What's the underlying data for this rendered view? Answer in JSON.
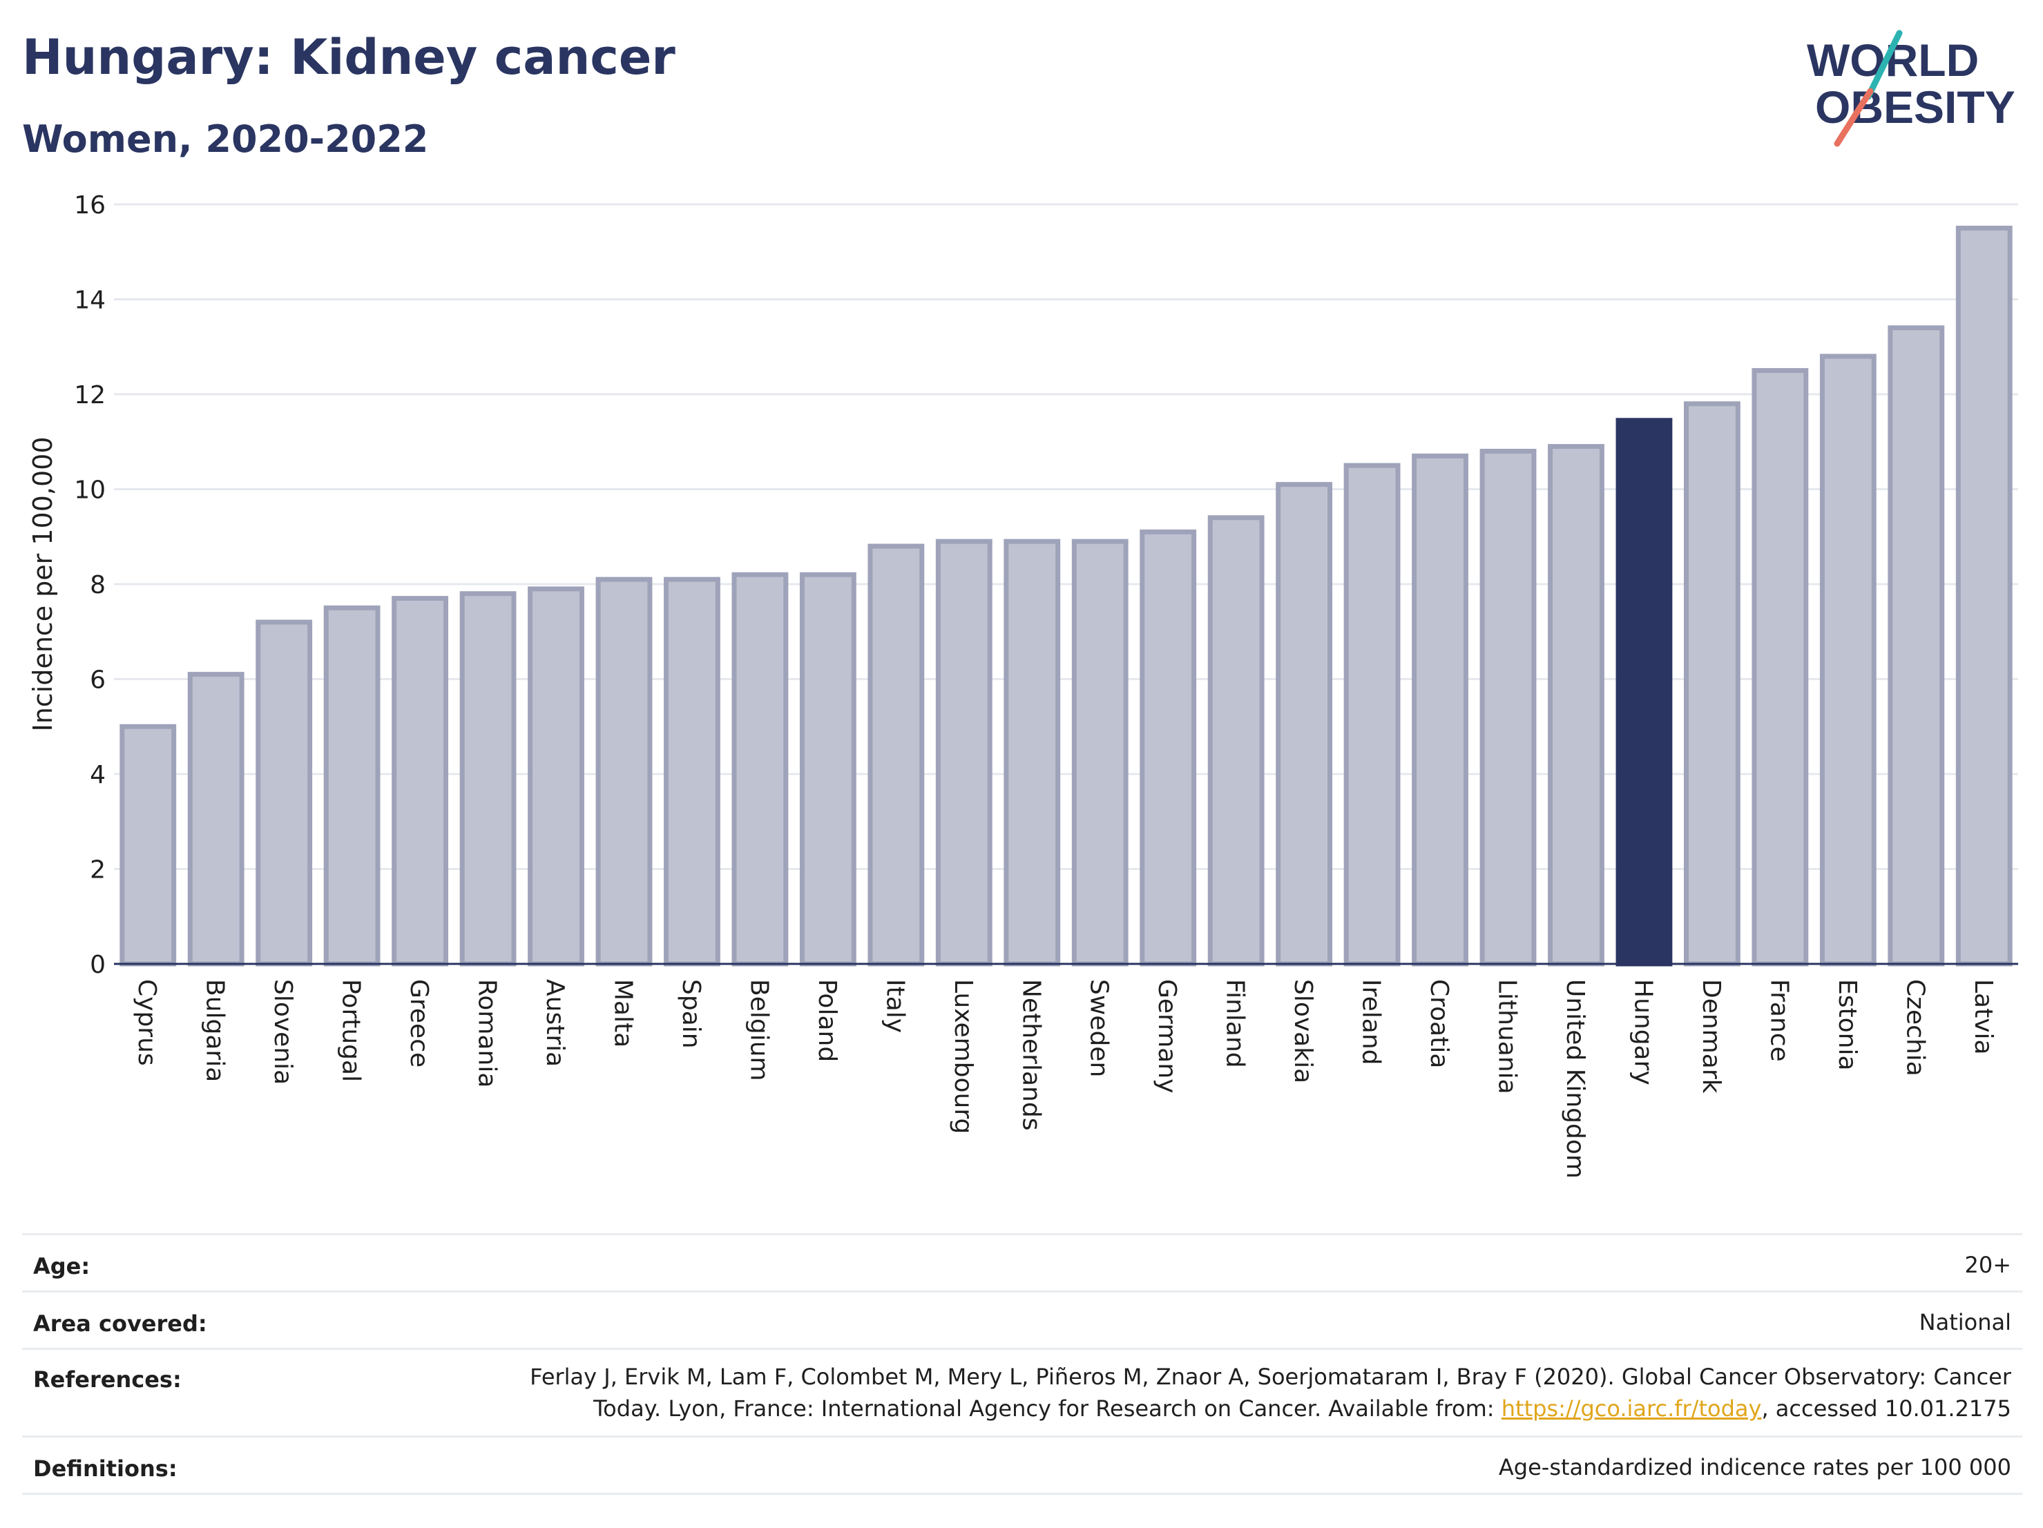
{
  "title": "Hungary: Kidney cancer",
  "subtitle": "Women, 2020-2022",
  "logo": {
    "line1": "WORLD",
    "line2": "OBESITY",
    "colors": {
      "text": "#2a3561",
      "teal": "#2bb3b1",
      "coral": "#e8715f"
    }
  },
  "colors": {
    "bar": "#bfc2d0",
    "bar_stroke": "#9ea3ba",
    "highlight": "#2a3561",
    "grid": "#e6e8ee",
    "axis": "#2a3561"
  },
  "chart_data": {
    "type": "bar",
    "ylabel": "Incidence per 100,000",
    "ylim": [
      0,
      16
    ],
    "yticks": [
      "0",
      "2",
      "4",
      "6",
      "8",
      "10",
      "12",
      "14",
      "16"
    ],
    "grid": true,
    "highlight": "Hungary",
    "categories": [
      "Cyprus",
      "Bulgaria",
      "Slovenia",
      "Portugal",
      "Greece",
      "Romania",
      "Austria",
      "Malta",
      "Spain",
      "Belgium",
      "Poland",
      "Italy",
      "Luxembourg",
      "Netherlands",
      "Sweden",
      "Germany",
      "Finland",
      "Slovakia",
      "Ireland",
      "Croatia",
      "Lithuania",
      "United Kingdom",
      "Hungary",
      "Denmark",
      "France",
      "Estonia",
      "Czechia",
      "Latvia"
    ],
    "values": [
      5.0,
      6.1,
      7.2,
      7.5,
      7.7,
      7.8,
      7.9,
      8.1,
      8.1,
      8.2,
      8.2,
      8.8,
      8.9,
      8.9,
      8.9,
      9.1,
      9.4,
      10.1,
      10.5,
      10.7,
      10.8,
      10.9,
      11.45,
      11.8,
      12.5,
      12.8,
      13.4,
      15.5
    ]
  },
  "meta": {
    "age_label": "Age:",
    "age_value": "20+",
    "area_label": "Area covered:",
    "area_value": "National",
    "ref_label": "References:",
    "ref_line1": "Ferlay J, Ervik M, Lam F, Colombet M, Mery L, Piñeros M, Znaor A, Soerjomataram I, Bray F (2020). Global Cancer Observatory: Cancer",
    "ref_line2_pre": "Today. Lyon, France: International Agency for Research on Cancer. Available from: ",
    "ref_link": "https://gco.iarc.fr/today",
    "ref_line2_post": ", accessed 10.01.2175",
    "def_label": "Definitions:",
    "def_value": "Age-standardized indicence rates per 100 000"
  }
}
